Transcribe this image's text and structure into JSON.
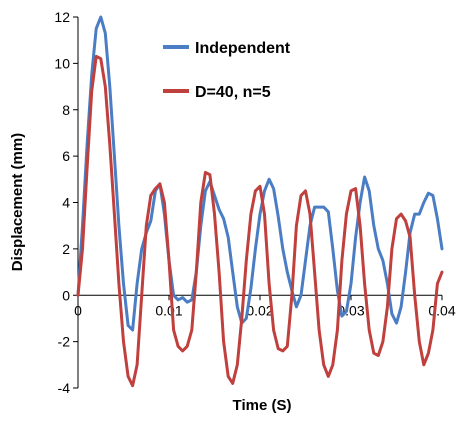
{
  "chart_data": {
    "type": "line",
    "xlabel": "Time (S)",
    "ylabel": "Displacement (mm)",
    "xlim": [
      0,
      0.04
    ],
    "ylim": [
      -4,
      12
    ],
    "x_ticks": [
      0,
      0.01,
      0.02,
      0.03,
      0.04
    ],
    "x_tick_labels": [
      "0",
      "0.01",
      "0.02",
      "0.03",
      "0.04"
    ],
    "y_ticks": [
      -4,
      -2,
      0,
      2,
      4,
      6,
      8,
      10,
      12
    ],
    "grid": false,
    "legend": "top-right",
    "series": [
      {
        "name": "Independent",
        "color": "#4a7dc4",
        "points": [
          [
            0,
            0
          ],
          [
            0.0005,
            3
          ],
          [
            0.001,
            6.5
          ],
          [
            0.0015,
            9.5
          ],
          [
            0.002,
            11.5
          ],
          [
            0.0025,
            12
          ],
          [
            0.003,
            11.3
          ],
          [
            0.0035,
            9
          ],
          [
            0.004,
            6
          ],
          [
            0.0045,
            3
          ],
          [
            0.005,
            0.5
          ],
          [
            0.0055,
            -1.3
          ],
          [
            0.006,
            -1.5
          ],
          [
            0.0065,
            0.5
          ],
          [
            0.007,
            2
          ],
          [
            0.0075,
            2.7
          ],
          [
            0.008,
            3.2
          ],
          [
            0.0085,
            4.5
          ],
          [
            0.009,
            4.8
          ],
          [
            0.0095,
            3.5
          ],
          [
            0.01,
            1.5
          ],
          [
            0.0105,
            0
          ],
          [
            0.011,
            -0.2
          ],
          [
            0.0115,
            -0.1
          ],
          [
            0.012,
            -0.3
          ],
          [
            0.0125,
            -0.2
          ],
          [
            0.013,
            1
          ],
          [
            0.0135,
            3
          ],
          [
            0.014,
            4.5
          ],
          [
            0.0145,
            4.9
          ],
          [
            0.015,
            4.3
          ],
          [
            0.0155,
            3.7
          ],
          [
            0.016,
            3.3
          ],
          [
            0.0165,
            2.5
          ],
          [
            0.017,
            1
          ],
          [
            0.0175,
            -0.5
          ],
          [
            0.018,
            -1.2
          ],
          [
            0.0185,
            -1
          ],
          [
            0.019,
            0.3
          ],
          [
            0.0195,
            2
          ],
          [
            0.02,
            3.5
          ],
          [
            0.0205,
            4.5
          ],
          [
            0.021,
            5
          ],
          [
            0.0215,
            4.6
          ],
          [
            0.022,
            3.4
          ],
          [
            0.0225,
            2
          ],
          [
            0.023,
            1
          ],
          [
            0.0235,
            0.2
          ],
          [
            0.024,
            -0.5
          ],
          [
            0.0245,
            0
          ],
          [
            0.025,
            1.5
          ],
          [
            0.0255,
            3
          ],
          [
            0.026,
            3.8
          ],
          [
            0.0265,
            3.8
          ],
          [
            0.027,
            3.8
          ],
          [
            0.0275,
            3.6
          ],
          [
            0.028,
            2
          ],
          [
            0.0285,
            0.2
          ],
          [
            0.029,
            -0.9
          ],
          [
            0.0295,
            -0.7
          ],
          [
            0.03,
            0.5
          ],
          [
            0.0305,
            2.5
          ],
          [
            0.031,
            4
          ],
          [
            0.0315,
            5.1
          ],
          [
            0.032,
            4.5
          ],
          [
            0.0325,
            3
          ],
          [
            0.033,
            2
          ],
          [
            0.0335,
            1.5
          ],
          [
            0.034,
            0.5
          ],
          [
            0.0345,
            -0.8
          ],
          [
            0.035,
            -1.2
          ],
          [
            0.0355,
            -0.5
          ],
          [
            0.036,
            1
          ],
          [
            0.0365,
            2.7
          ],
          [
            0.037,
            3.5
          ],
          [
            0.0375,
            3.5
          ],
          [
            0.038,
            4
          ],
          [
            0.0385,
            4.4
          ],
          [
            0.039,
            4.3
          ],
          [
            0.0395,
            3.3
          ],
          [
            0.04,
            2
          ]
        ]
      },
      {
        "name": "D=40, n=5",
        "color": "#c0403e",
        "points": [
          [
            0,
            0
          ],
          [
            0.0005,
            2
          ],
          [
            0.001,
            5.5
          ],
          [
            0.0015,
            8.8
          ],
          [
            0.002,
            10.3
          ],
          [
            0.0025,
            10.2
          ],
          [
            0.003,
            9
          ],
          [
            0.0035,
            6.5
          ],
          [
            0.004,
            3.5
          ],
          [
            0.0045,
            0.5
          ],
          [
            0.005,
            -2
          ],
          [
            0.0055,
            -3.5
          ],
          [
            0.006,
            -3.9
          ],
          [
            0.0065,
            -3
          ],
          [
            0.007,
            0
          ],
          [
            0.0075,
            3
          ],
          [
            0.008,
            4.3
          ],
          [
            0.0085,
            4.6
          ],
          [
            0.009,
            4.8
          ],
          [
            0.0095,
            4
          ],
          [
            0.01,
            1.5
          ],
          [
            0.0105,
            -1.5
          ],
          [
            0.011,
            -2.2
          ],
          [
            0.0115,
            -2.4
          ],
          [
            0.012,
            -2.2
          ],
          [
            0.0125,
            -1.5
          ],
          [
            0.013,
            1
          ],
          [
            0.0135,
            4
          ],
          [
            0.014,
            5.3
          ],
          [
            0.0145,
            5.2
          ],
          [
            0.015,
            3.5
          ],
          [
            0.0155,
            1
          ],
          [
            0.016,
            -2
          ],
          [
            0.0165,
            -3.5
          ],
          [
            0.017,
            -3.8
          ],
          [
            0.0175,
            -3
          ],
          [
            0.018,
            -1
          ],
          [
            0.0185,
            1.5
          ],
          [
            0.019,
            3.5
          ],
          [
            0.0195,
            4.5
          ],
          [
            0.02,
            4.7
          ],
          [
            0.0205,
            3.5
          ],
          [
            0.021,
            0.5
          ],
          [
            0.0215,
            -1.5
          ],
          [
            0.022,
            -2.3
          ],
          [
            0.0225,
            -2.4
          ],
          [
            0.023,
            -2.2
          ],
          [
            0.0235,
            0
          ],
          [
            0.024,
            3
          ],
          [
            0.0245,
            4.3
          ],
          [
            0.025,
            4.5
          ],
          [
            0.0255,
            3.5
          ],
          [
            0.026,
            1
          ],
          [
            0.0265,
            -1.5
          ],
          [
            0.027,
            -3
          ],
          [
            0.0275,
            -3.5
          ],
          [
            0.028,
            -3
          ],
          [
            0.0285,
            -1.5
          ],
          [
            0.029,
            1.5
          ],
          [
            0.0295,
            3.5
          ],
          [
            0.03,
            4.5
          ],
          [
            0.0305,
            4.6
          ],
          [
            0.031,
            3
          ],
          [
            0.0315,
            0.5
          ],
          [
            0.032,
            -1.5
          ],
          [
            0.0325,
            -2.5
          ],
          [
            0.033,
            -2.6
          ],
          [
            0.0335,
            -2
          ],
          [
            0.034,
            -0.5
          ],
          [
            0.0345,
            2
          ],
          [
            0.035,
            3.3
          ],
          [
            0.0355,
            3.5
          ],
          [
            0.036,
            3.2
          ],
          [
            0.0365,
            2.5
          ],
          [
            0.037,
            0
          ],
          [
            0.0375,
            -2
          ],
          [
            0.038,
            -3
          ],
          [
            0.0385,
            -2.5
          ],
          [
            0.039,
            -1.5
          ],
          [
            0.0395,
            0.5
          ],
          [
            0.04,
            1
          ]
        ]
      }
    ]
  }
}
